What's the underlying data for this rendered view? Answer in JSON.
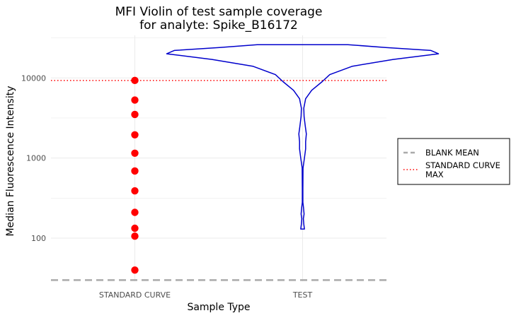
{
  "chart_data": {
    "type": "violin",
    "title_lines": [
      "MFI Violin of test sample coverage",
      "for analyte: Spike_B16172"
    ],
    "xlabel": "Sample Type",
    "ylabel": "Median Fluorescence Intensity",
    "y_scale": "log10",
    "ylim": [
      29,
      34000
    ],
    "y_ticks": [
      {
        "value": 100,
        "label": "100"
      },
      {
        "value": 1000,
        "label": "1000"
      },
      {
        "value": 10000,
        "label": "10000"
      }
    ],
    "categories": [
      "STANDARD CURVE",
      "TEST"
    ],
    "standard_curve_points": [
      9300,
      5300,
      3500,
      1950,
      1150,
      690,
      390,
      210,
      133,
      106,
      40
    ],
    "test_violin": {
      "y_min": 130,
      "y_max": 26000,
      "profile": [
        {
          "y": 130,
          "w": 0.012
        },
        {
          "y": 150,
          "w": 0.008
        },
        {
          "y": 175,
          "w": 0.005
        },
        {
          "y": 200,
          "w": 0.01
        },
        {
          "y": 240,
          "w": 0.006
        },
        {
          "y": 280,
          "w": 0.002
        },
        {
          "y": 400,
          "w": 0.002
        },
        {
          "y": 750,
          "w": 0.003
        },
        {
          "y": 1000,
          "w": 0.012
        },
        {
          "y": 1300,
          "w": 0.02
        },
        {
          "y": 1600,
          "w": 0.02
        },
        {
          "y": 2000,
          "w": 0.025
        },
        {
          "y": 2500,
          "w": 0.018
        },
        {
          "y": 3300,
          "w": 0.01
        },
        {
          "y": 4200,
          "w": 0.008
        },
        {
          "y": 5500,
          "w": 0.02
        },
        {
          "y": 7000,
          "w": 0.06
        },
        {
          "y": 9000,
          "w": 0.13
        },
        {
          "y": 11000,
          "w": 0.18
        },
        {
          "y": 14000,
          "w": 0.33
        },
        {
          "y": 17000,
          "w": 0.6
        },
        {
          "y": 20000,
          "w": 0.9
        },
        {
          "y": 22000,
          "w": 0.85
        },
        {
          "y": 24000,
          "w": 0.55
        },
        {
          "y": 26000,
          "w": 0.3
        }
      ]
    },
    "reference_lines": [
      {
        "name": "BLANK MEAN",
        "value": 30,
        "style": "dashed",
        "color": "#aaaaaa"
      },
      {
        "name": "STANDARD CURVE MAX",
        "value": 9300,
        "style": "dotted",
        "color": "#ff0000"
      }
    ],
    "legend": {
      "placement": "right",
      "entries": [
        {
          "label_lines": [
            "BLANK MEAN"
          ],
          "style": "dashed",
          "color": "#aaaaaa"
        },
        {
          "label_lines": [
            "STANDARD CURVE",
            "MAX"
          ],
          "style": "dotted",
          "color": "#ff0000"
        }
      ]
    },
    "colors": {
      "points": "#ff0000",
      "violin": "#0000cc",
      "grid": "#ebebeb"
    },
    "grid": true
  }
}
